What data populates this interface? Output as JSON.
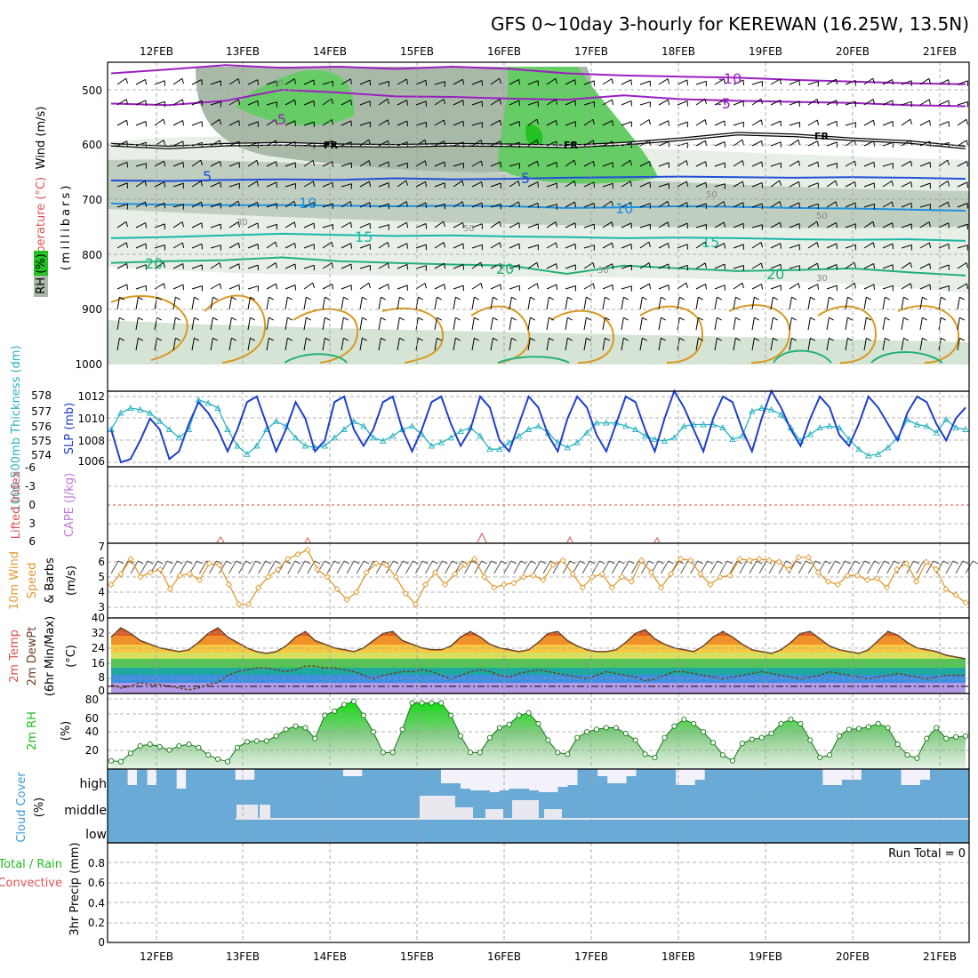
{
  "title": "GFS 0~10day 3-hourly for KEREWAN (16.25W, 13.5N)",
  "colors": {
    "purple": "#9b1fc0",
    "black": "#000000",
    "blue": "#1f4fd6",
    "lightblue": "#1e90e0",
    "teal": "#1bb8a8",
    "green": "#22b07a",
    "rh_light": "#e4efe4",
    "rh_mid": "#bccdbc",
    "rh_dark": "#8fa58f",
    "rh_green": "#55cc55",
    "slp": "#1e3fcc",
    "thickness": "#2ab3c0",
    "lifted": "#e05050",
    "wind10": "#e09a30",
    "cloud": "#6aaad6",
    "cloud_bg": "#f3f1fa",
    "rh2m": "#22bb22"
  },
  "chart_data": [
    {
      "type": "heatmap",
      "panel": "upper-air",
      "x_dates": [
        "12FEB",
        "13FEB",
        "14FEB",
        "15FEB",
        "16FEB",
        "17FEB",
        "18FEB",
        "19FEB",
        "20FEB",
        "21FEB"
      ],
      "y_ticks": [
        "500",
        "600",
        "700",
        "800",
        "900",
        "1000"
      ],
      "ylabel_wind": "Wind (m/s)",
      "ylabel_temp": "Temperature (°C)",
      "ylabel_rh": "RH (%)",
      "ylabel_mb": "(millibars)",
      "temperature_labels": [
        "-10",
        "-5",
        "-5",
        "5",
        "5",
        "10",
        "10",
        "15",
        "15",
        "20",
        "20",
        "20"
      ],
      "freezing_labels": [
        "FR",
        "FR",
        "FR"
      ],
      "rh_labels": [
        "30",
        "30",
        "50",
        "50",
        "50",
        "30",
        "30"
      ],
      "rh_legend": "RH (%)",
      "isotherms": [
        {
          "label": "-10",
          "mb": [
            470,
            463,
            455,
            460,
            458,
            462,
            458,
            462,
            470,
            474,
            476,
            478,
            482,
            485,
            488,
            490
          ]
        },
        {
          "label": "-5",
          "mb": [
            525,
            528,
            520,
            500,
            505,
            512,
            513,
            516,
            518,
            510,
            517,
            520,
            522,
            524,
            528,
            530
          ]
        },
        {
          "label": "FR",
          "mb": [
            600,
            605,
            600,
            598,
            601,
            602,
            600,
            601,
            603,
            598,
            590,
            580,
            583,
            590,
            595,
            605
          ]
        },
        {
          "label": "5",
          "mb": [
            665,
            666,
            664,
            663,
            664,
            661,
            663,
            662,
            660,
            659,
            658,
            659,
            660,
            659,
            660,
            662
          ]
        },
        {
          "label": "10",
          "mb": [
            707,
            709,
            710,
            710,
            711,
            712,
            711,
            712,
            715,
            714,
            712,
            713,
            715,
            716,
            718,
            720
          ]
        },
        {
          "label": "15",
          "mb": [
            770,
            768,
            765,
            762,
            764,
            766,
            765,
            767,
            768,
            770,
            769,
            770,
            772,
            773,
            772,
            775
          ]
        },
        {
          "label": "20",
          "mb": [
            815,
            812,
            810,
            805,
            812,
            815,
            818,
            820,
            835,
            820,
            825,
            830,
            828,
            825,
            832,
            838
          ]
        }
      ]
    },
    {
      "type": "line",
      "panel": "slp-thickness",
      "ylabel_left": "1000-500mb Thickness (dm)",
      "ylabel_right": "SLP (mb)",
      "y_ticks_thickness": [
        "574",
        "575",
        "576",
        "577",
        "578"
      ],
      "y_ticks_slp": [
        "1006",
        "1008",
        "1010",
        "1012"
      ],
      "series": [
        {
          "name": "SLP (mb)",
          "values": [
            1009,
            1006,
            1006.3,
            1008,
            1010,
            1009,
            1006.3,
            1007,
            1009.5,
            1011.5,
            1010.5,
            1009,
            1007,
            1009,
            1011.5,
            1012,
            1009.5,
            1007,
            1009,
            1011.5,
            1010,
            1007,
            1008,
            1011.5,
            1012,
            1009,
            1007.5,
            1009,
            1011.5,
            1012,
            1009,
            1007,
            1009,
            1011.5,
            1012,
            1009.5,
            1007.5,
            1009,
            1012,
            1011,
            1008,
            1007,
            1009.5,
            1012,
            1011,
            1008.5,
            1007,
            1010,
            1012,
            1011,
            1008.5,
            1007,
            1009.5,
            1012,
            1011.5,
            1009,
            1007,
            1010,
            1012.5,
            1011,
            1009,
            1007,
            1010,
            1012,
            1011.5,
            1009,
            1007,
            1010,
            1012.5,
            1011,
            1009,
            1007.5,
            1010,
            1012,
            1011,
            1008.5,
            1007.5,
            1009.5,
            1012,
            1011,
            1009.5,
            1008,
            1010.5,
            1012,
            1011.5,
            1009.5,
            1008,
            1010,
            1011
          ]
        },
        {
          "name": "1000-500mb Thickness (dm)",
          "values": [
            576,
            577,
            577.3,
            577.2,
            577,
            576.5,
            576,
            575.5,
            576,
            577.8,
            577.6,
            577.3,
            576,
            575,
            574.5,
            575,
            576,
            576.5,
            576.2,
            575.5,
            575,
            574.9,
            575,
            575.5,
            576,
            576.5,
            576.2,
            575.5,
            575.3,
            575.6,
            576,
            576.2,
            575.7,
            575,
            575.2,
            575.5,
            575.9,
            576.1,
            575.6,
            574.8,
            574.8,
            575.2,
            575.6,
            576,
            576.2,
            575.8,
            575.2,
            574.9,
            575.2,
            575.8,
            576.4,
            576.4,
            576.4,
            576.2,
            576,
            575.6,
            575.4,
            575.3,
            575.5,
            576.2,
            576.3,
            576.3,
            576.3,
            576.1,
            575.4,
            575.6,
            577.1,
            577.3,
            577.2,
            576.9,
            576.1,
            575.3,
            575.7,
            576.1,
            576.2,
            576.1,
            575.4,
            574.8,
            574.4,
            574.5,
            574.9,
            575.5,
            576.6,
            576.3,
            576.2,
            575.8,
            576.6,
            576.1,
            576
          ]
        }
      ]
    },
    {
      "type": "line",
      "panel": "lifted-index-cape",
      "ylabel_left": "Lifted Index",
      "ylabel_right": "CAPE (J/kg)",
      "y_ticks": [
        "-6",
        "-3",
        "0",
        "3",
        "6"
      ],
      "series": [
        {
          "name": "Lifted Index",
          "values": [
            0,
            0,
            0,
            0,
            0,
            0,
            0,
            0,
            0,
            0,
            0,
            0,
            0,
            0,
            0,
            0,
            0,
            0,
            0,
            0
          ]
        }
      ]
    },
    {
      "type": "line",
      "panel": "wind10m",
      "ylabel_left": "10m Wind",
      "ylabel_mid": "Speed",
      "ylabel_right": "& Barbs",
      "ylabel_units": "(m/s)",
      "y_ticks": [
        "3",
        "4",
        "5",
        "6",
        "7"
      ],
      "series": [
        {
          "name": "10m Wind Speed (m/s)",
          "values": [
            4.5,
            5.2,
            6.2,
            5.0,
            5.3,
            5.5,
            4.2,
            5.1,
            5.2,
            4.8,
            5.9,
            5.8,
            4.5,
            3.2,
            3.2,
            4.3,
            5.0,
            5.5,
            6.2,
            6.5,
            6.8,
            5.5,
            5.0,
            4.2,
            3.5,
            4.0,
            5.3,
            5.9,
            5.8,
            5.0,
            3.9,
            3.2,
            4.5,
            5.3,
            4.5,
            5.2,
            5.8,
            6.2,
            5.0,
            4.3,
            4.5,
            4.6,
            5.0,
            5.1,
            4.8,
            5.8,
            6.1,
            5.2,
            4.3,
            5.0,
            5.2,
            4.3,
            5.0,
            4.7,
            6.1,
            5.3,
            4.3,
            5.2,
            6.2,
            6.1,
            5.2,
            4.5,
            5.0,
            5.1,
            6.2,
            6.1,
            6.2,
            6.1,
            6.0,
            5.5,
            6.3,
            6.3,
            5.3,
            4.7,
            4.5,
            5.1,
            5.1,
            4.8,
            4.9,
            4.3,
            5.5,
            5.9,
            4.7,
            6.0,
            5.5,
            4.2,
            3.8,
            3.3
          ]
        }
      ]
    },
    {
      "type": "area",
      "panel": "temperature",
      "ylabel_left": "2m Temp",
      "ylabel_mid": "2m DewPt",
      "ylabel_right": "(6hr Min/Max)",
      "ylabel_units": "(°C)",
      "y_ticks": [
        "0",
        "8",
        "16",
        "24",
        "32",
        "40"
      ],
      "series": [
        {
          "name": "2m Temp (°C)",
          "values": [
            31,
            36,
            33,
            29,
            27,
            25,
            24,
            23,
            24,
            28,
            33,
            36,
            31,
            28,
            25,
            23,
            22,
            23,
            26,
            31,
            34,
            29,
            27,
            25,
            24,
            23,
            25,
            29,
            33,
            34,
            29,
            27,
            25,
            24,
            24,
            26,
            31,
            34,
            31,
            27,
            25,
            24,
            23,
            24,
            28,
            33,
            34,
            29,
            26,
            24,
            23,
            23,
            24,
            28,
            33,
            35,
            30,
            27,
            25,
            24,
            23,
            26,
            31,
            34,
            31,
            27,
            24,
            23,
            22,
            24,
            28,
            33,
            34,
            30,
            26,
            24,
            23,
            22,
            24,
            29,
            34,
            32,
            28,
            25,
            24,
            23,
            21,
            20,
            19
          ]
        },
        {
          "name": "2m DewPt (°C)",
          "values": [
            5,
            3,
            4,
            6,
            5,
            5,
            4,
            3,
            2,
            3,
            5,
            6,
            10,
            12,
            13,
            14,
            14,
            13,
            12,
            13,
            15,
            15,
            14,
            14,
            13,
            12,
            10,
            8,
            10,
            11,
            12,
            12,
            13,
            12,
            10,
            8,
            10,
            12,
            13,
            12,
            10,
            9,
            11,
            12,
            13,
            12,
            11,
            10,
            9,
            8,
            10,
            12,
            11,
            10,
            9,
            7,
            8,
            10,
            12,
            12,
            11,
            10,
            9,
            8,
            9,
            10,
            11,
            12,
            11,
            10,
            9,
            8,
            9,
            10,
            12,
            11,
            10,
            9,
            8,
            9,
            10,
            11,
            10,
            9,
            8,
            9,
            10,
            10,
            10
          ]
        }
      ]
    },
    {
      "type": "area",
      "panel": "rh2m",
      "ylabel": "2m RH",
      "ylabel_units": "(%)",
      "y_ticks": [
        "20",
        "40",
        "60",
        "80"
      ],
      "series": [
        {
          "name": "2m RH (%)",
          "values": [
            10,
            9,
            19,
            28,
            30,
            27,
            23,
            28,
            30,
            26,
            17,
            12,
            9,
            26,
            33,
            34,
            34,
            40,
            48,
            52,
            50,
            37,
            65,
            70,
            78,
            82,
            65,
            45,
            20,
            20,
            48,
            80,
            80,
            80,
            80,
            65,
            40,
            20,
            20,
            38,
            50,
            54,
            65,
            68,
            55,
            35,
            20,
            18,
            38,
            45,
            48,
            50,
            50,
            43,
            35,
            18,
            14,
            38,
            52,
            60,
            55,
            45,
            32,
            17,
            10,
            31,
            36,
            38,
            43,
            55,
            60,
            55,
            35,
            14,
            17,
            40,
            48,
            49,
            51,
            55,
            50,
            30,
            17,
            13,
            37,
            50,
            37,
            39,
            40
          ]
        }
      ]
    },
    {
      "type": "heatmap",
      "panel": "cloud-cover",
      "ylabel": "Cloud Cover",
      "ylabel_units": "(%)",
      "y_ticks": [
        "high",
        "middle",
        "low"
      ]
    },
    {
      "type": "bar",
      "panel": "precip",
      "ylabel_left": "Total / Rain",
      "ylabel_right": "Convective",
      "ylabel": "3hr Precip (mm)",
      "run_total": "Run Total = 0",
      "y_ticks": [
        "0",
        "0.2",
        "0.4",
        "0.6",
        "0.8"
      ],
      "x_dates": [
        "12FEB",
        "13FEB",
        "14FEB",
        "15FEB",
        "16FEB",
        "17FEB",
        "18FEB",
        "19FEB",
        "20FEB",
        "21FEB"
      ],
      "values": [
        0,
        0,
        0,
        0,
        0,
        0,
        0,
        0,
        0,
        0
      ]
    }
  ]
}
